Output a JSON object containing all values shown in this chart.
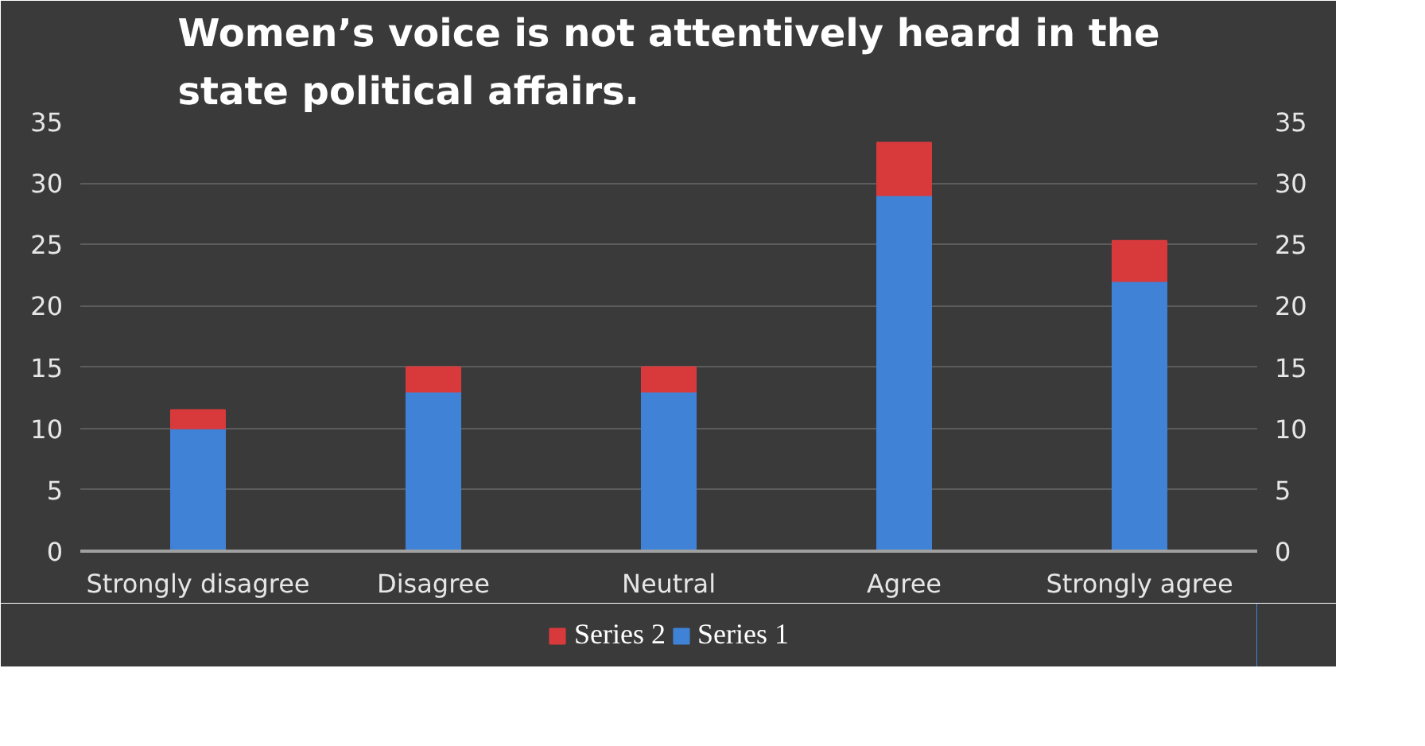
{
  "chart_data": {
    "type": "bar",
    "title": "Women’s voice is not attentively heard in the state political affairs.",
    "categories": [
      "Strongly disagree",
      "Disagree",
      "Neutral",
      "Agree",
      "Strongly agree"
    ],
    "stacked": true,
    "series": [
      {
        "name": "Series 1",
        "color": "#3f82d6",
        "values": [
          10,
          13,
          13,
          29,
          22
        ]
      },
      {
        "name": "Series 2",
        "color": "#d83a3c",
        "values": [
          1.5,
          2,
          2,
          4.3,
          3.3
        ]
      }
    ],
    "ylim": [
      0,
      35
    ],
    "yticks": [
      0,
      5,
      10,
      15,
      20,
      25,
      30,
      35
    ],
    "y2lim": [
      0,
      35
    ],
    "y2ticks": [
      0,
      5,
      10,
      15,
      20,
      25,
      30,
      35
    ],
    "grid": "y",
    "legend": "bottom"
  }
}
